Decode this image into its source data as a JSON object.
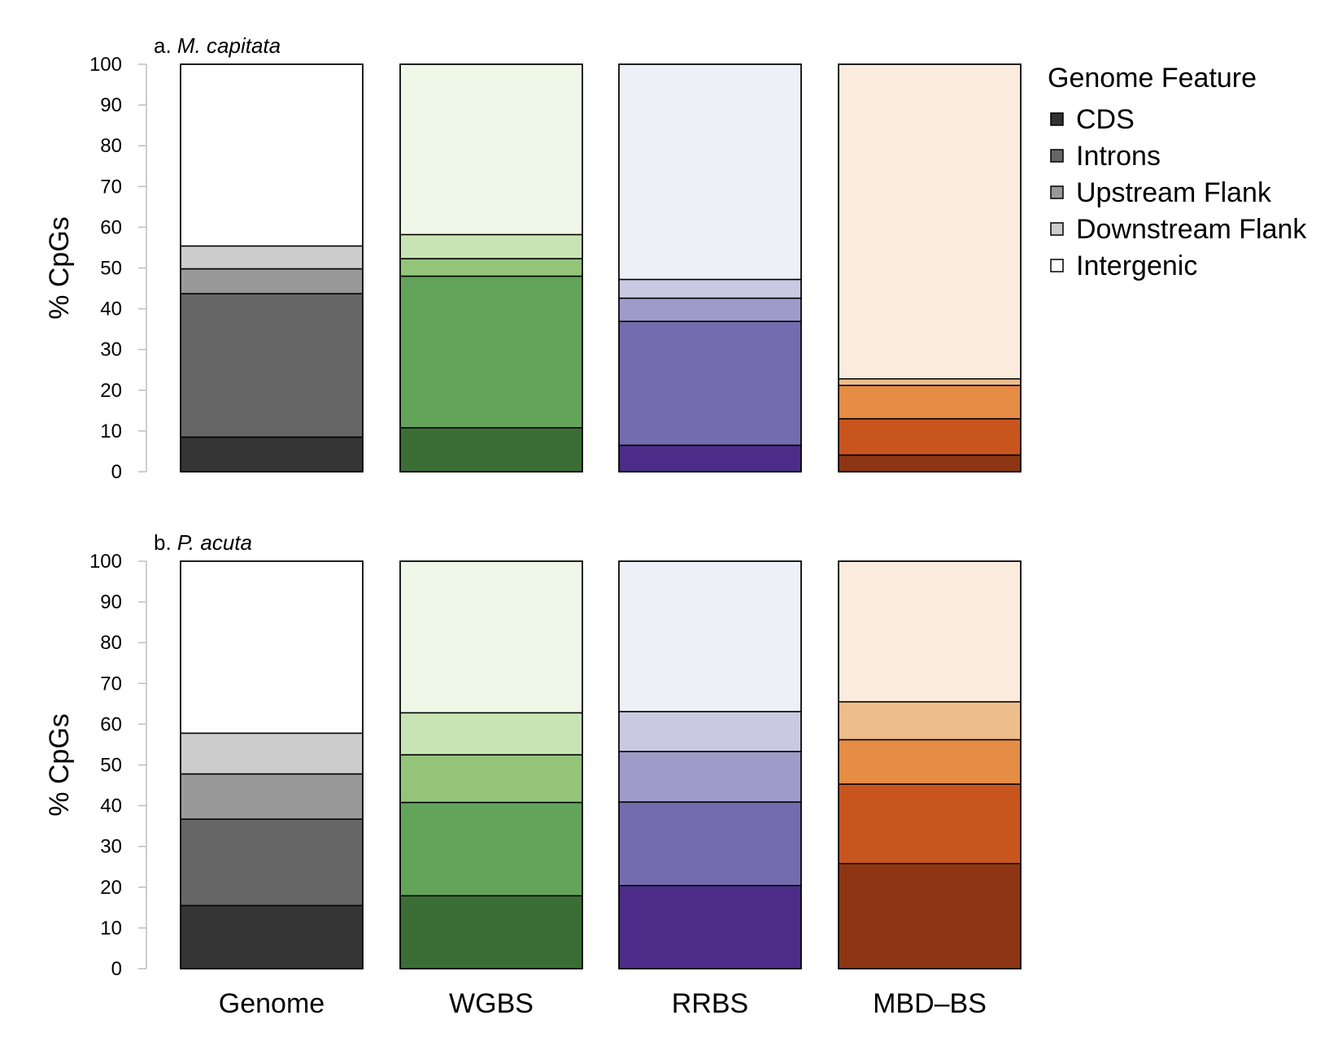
{
  "chart_data": {
    "type": "bar",
    "stacked": true,
    "categories": [
      "Genome",
      "WGBS",
      "RRBS",
      "MBD–BS"
    ],
    "ylabel": "% CpGs",
    "ylim": [
      0,
      100
    ],
    "yticks": [
      0,
      10,
      20,
      30,
      40,
      50,
      60,
      70,
      80,
      90,
      100
    ],
    "grid": false,
    "legend": {
      "title": "Genome Feature",
      "placement": "right",
      "entries": [
        "CDS",
        "Introns",
        "Upstream Flank",
        "Downstream Flank",
        "Intergenic"
      ],
      "colors": [
        "#333333",
        "#666666",
        "#999999",
        "#cccccc",
        "#ffffff"
      ]
    },
    "palettes": {
      "Genome": [
        "#353535",
        "#666666",
        "#999999",
        "#cccccc",
        "#ffffff"
      ],
      "WGBS": [
        "#3b6e35",
        "#63a35a",
        "#93c47a",
        "#c8e4b4",
        "#eff7e8"
      ],
      "RRBS": [
        "#4d2c89",
        "#736cae",
        "#9f9bc8",
        "#cbc9e2",
        "#efeff8"
      ],
      "MBD–BS": [
        "#8e3613",
        "#c8551e",
        "#e58c45",
        "#edbd8a",
        "#faebdd"
      ]
    },
    "panels": [
      {
        "prefix": "a.",
        "species": "M. capitata",
        "series": [
          {
            "name": "CDS",
            "values": [
              8.5,
              10.8,
              6.5,
              4.1
            ]
          },
          {
            "name": "Introns",
            "values": [
              35.2,
              37.2,
              30.4,
              8.9
            ]
          },
          {
            "name": "Upstream Flank",
            "values": [
              6.1,
              4.3,
              5.7,
              8.2
            ]
          },
          {
            "name": "Downstream Flank",
            "values": [
              5.6,
              5.9,
              4.6,
              1.6
            ]
          },
          {
            "name": "Intergenic",
            "values": [
              44.6,
              41.8,
              52.8,
              77.2
            ]
          }
        ]
      },
      {
        "prefix": "b.",
        "species": "P. acuta",
        "series": [
          {
            "name": "CDS",
            "values": [
              15.5,
              17.9,
              20.4,
              25.8
            ]
          },
          {
            "name": "Introns",
            "values": [
              21.2,
              22.9,
              20.5,
              19.5
            ]
          },
          {
            "name": "Upstream Flank",
            "values": [
              11.1,
              11.7,
              12.4,
              10.9
            ]
          },
          {
            "name": "Downstream Flank",
            "values": [
              10.0,
              10.3,
              9.8,
              9.3
            ]
          },
          {
            "name": "Intergenic",
            "values": [
              42.2,
              37.2,
              36.9,
              34.5
            ]
          }
        ]
      }
    ]
  }
}
